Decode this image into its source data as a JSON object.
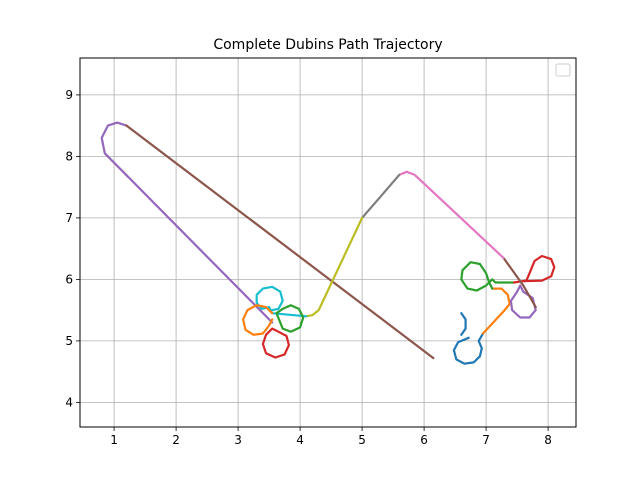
{
  "chart_data": {
    "type": "line",
    "title": "Complete Dubins Path Trajectory",
    "xlabel": "",
    "ylabel": "",
    "xlim": [
      0.45,
      8.45
    ],
    "ylim": [
      3.6,
      9.6
    ],
    "x_ticks": [
      1,
      2,
      3,
      4,
      5,
      6,
      7,
      8
    ],
    "y_ticks": [
      4,
      5,
      6,
      7,
      8,
      9
    ],
    "grid": true,
    "legend": {
      "placement": "top-right",
      "entries": []
    },
    "series": [
      {
        "color": "#9467bd",
        "points": [
          [
            3.55,
            5.3
          ],
          [
            0.85,
            8.05
          ],
          [
            0.8,
            8.3
          ],
          [
            0.9,
            8.5
          ],
          [
            1.05,
            8.55
          ],
          [
            1.2,
            8.5
          ]
        ]
      },
      {
        "color": "#8c564b",
        "points": [
          [
            1.2,
            8.5
          ],
          [
            6.15,
            4.72
          ]
        ]
      },
      {
        "color": "#1f77b4",
        "points": [
          [
            6.6,
            5.45
          ],
          [
            6.67,
            5.35
          ],
          [
            6.67,
            5.2
          ],
          [
            6.6,
            5.1
          ]
        ]
      },
      {
        "color": "#1f77b4",
        "points": [
          [
            6.72,
            5.05
          ],
          [
            6.55,
            4.98
          ],
          [
            6.48,
            4.85
          ],
          [
            6.52,
            4.7
          ],
          [
            6.65,
            4.63
          ],
          [
            6.8,
            4.65
          ],
          [
            6.9,
            4.75
          ],
          [
            6.93,
            4.88
          ],
          [
            6.88,
            5.0
          ],
          [
            6.95,
            5.12
          ]
        ]
      },
      {
        "color": "#ff7f0e",
        "points": [
          [
            6.95,
            5.12
          ],
          [
            7.3,
            5.5
          ],
          [
            7.38,
            5.6
          ],
          [
            7.35,
            5.75
          ],
          [
            7.25,
            5.85
          ],
          [
            7.1,
            5.85
          ]
        ]
      },
      {
        "color": "#2ca02c",
        "points": [
          [
            7.1,
            5.85
          ],
          [
            7.05,
            5.95
          ],
          [
            7.0,
            6.1
          ],
          [
            6.9,
            6.25
          ],
          [
            6.75,
            6.28
          ],
          [
            6.62,
            6.15
          ],
          [
            6.6,
            6.0
          ],
          [
            6.7,
            5.85
          ],
          [
            6.85,
            5.82
          ],
          [
            7.0,
            5.9
          ],
          [
            7.1,
            6.0
          ],
          [
            7.15,
            5.95
          ],
          [
            7.45,
            5.95
          ]
        ]
      },
      {
        "color": "#d62728",
        "points": [
          [
            7.45,
            5.95
          ],
          [
            7.65,
            5.98
          ],
          [
            7.7,
            6.1
          ],
          [
            7.78,
            6.3
          ],
          [
            7.9,
            6.38
          ],
          [
            8.05,
            6.33
          ],
          [
            8.1,
            6.2
          ],
          [
            8.05,
            6.05
          ],
          [
            7.9,
            5.98
          ],
          [
            7.6,
            5.97
          ]
        ]
      },
      {
        "color": "#9467bd",
        "points": [
          [
            7.55,
            5.9
          ],
          [
            7.6,
            5.8
          ],
          [
            7.75,
            5.7
          ],
          [
            7.8,
            5.5
          ],
          [
            7.7,
            5.38
          ],
          [
            7.55,
            5.38
          ],
          [
            7.42,
            5.5
          ],
          [
            7.4,
            5.65
          ],
          [
            7.5,
            5.8
          ],
          [
            7.55,
            5.9
          ]
        ]
      },
      {
        "color": "#8c564b",
        "points": [
          [
            7.8,
            5.55
          ],
          [
            7.6,
            5.9
          ],
          [
            7.28,
            6.35
          ]
        ]
      },
      {
        "color": "#e377c2",
        "points": [
          [
            7.28,
            6.35
          ],
          [
            5.85,
            7.7
          ],
          [
            5.72,
            7.75
          ],
          [
            5.6,
            7.7
          ]
        ]
      },
      {
        "color": "#7f7f7f",
        "points": [
          [
            5.6,
            7.7
          ],
          [
            5.0,
            7.0
          ]
        ]
      },
      {
        "color": "#bcbd22",
        "points": [
          [
            5.0,
            7.0
          ],
          [
            4.3,
            5.5
          ],
          [
            4.2,
            5.42
          ],
          [
            4.1,
            5.4
          ]
        ]
      },
      {
        "color": "#17becf",
        "points": [
          [
            4.1,
            5.4
          ],
          [
            3.55,
            5.45
          ],
          [
            3.5,
            5.55
          ]
        ]
      },
      {
        "color": "#17becf",
        "points": [
          [
            3.5,
            5.55
          ],
          [
            3.38,
            5.52
          ],
          [
            3.3,
            5.62
          ],
          [
            3.3,
            5.75
          ],
          [
            3.4,
            5.85
          ],
          [
            3.55,
            5.88
          ],
          [
            3.68,
            5.8
          ],
          [
            3.72,
            5.65
          ],
          [
            3.65,
            5.52
          ],
          [
            3.55,
            5.5
          ]
        ]
      },
      {
        "color": "#2ca02c",
        "points": [
          [
            3.62,
            5.45
          ],
          [
            3.72,
            5.2
          ],
          [
            3.85,
            5.15
          ],
          [
            4.0,
            5.22
          ],
          [
            4.05,
            5.38
          ],
          [
            3.98,
            5.52
          ],
          [
            3.85,
            5.58
          ],
          [
            3.72,
            5.52
          ],
          [
            3.62,
            5.45
          ]
        ]
      },
      {
        "color": "#ff7f0e",
        "points": [
          [
            3.55,
            5.45
          ],
          [
            3.45,
            5.55
          ],
          [
            3.3,
            5.58
          ],
          [
            3.15,
            5.5
          ],
          [
            3.08,
            5.35
          ],
          [
            3.12,
            5.18
          ],
          [
            3.25,
            5.1
          ],
          [
            3.4,
            5.12
          ],
          [
            3.5,
            5.25
          ],
          [
            3.55,
            5.35
          ]
        ]
      },
      {
        "color": "#d62728",
        "points": [
          [
            3.55,
            5.2
          ],
          [
            3.45,
            5.1
          ],
          [
            3.4,
            4.95
          ],
          [
            3.45,
            4.8
          ],
          [
            3.6,
            4.73
          ],
          [
            3.75,
            4.78
          ],
          [
            3.82,
            4.93
          ],
          [
            3.78,
            5.08
          ],
          [
            3.65,
            5.15
          ],
          [
            3.55,
            5.2
          ]
        ]
      }
    ]
  }
}
